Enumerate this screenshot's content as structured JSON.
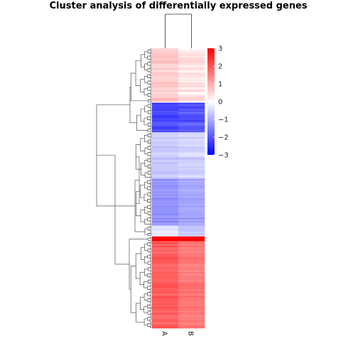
{
  "chart_data": {
    "type": "heatmap",
    "title": "Cluster analysis of differentially expressed genes",
    "columns": [
      "A",
      "B"
    ],
    "row_count": 180,
    "colorscale": {
      "min": -3,
      "max": 3,
      "low_color": "#0000ff",
      "mid_color": "#ffffff",
      "high_color": "#ff0000",
      "ticks": [
        3,
        2,
        1,
        0,
        -1,
        -2,
        -3
      ]
    },
    "column_dendrogram": "two leaves (A, B) joined at top",
    "row_blocks": [
      {
        "rows": 35,
        "A": 0.6,
        "B": 0.3,
        "noise": 0.45
      },
      {
        "rows": 19,
        "A": -2.2,
        "B": -2.0,
        "noise": 0.45
      },
      {
        "rows": 30,
        "A": -0.6,
        "B": -0.5,
        "noise": 0.3
      },
      {
        "rows": 30,
        "A": -1.3,
        "B": -1.1,
        "noise": 0.3
      },
      {
        "rows": 7,
        "A": -0.3,
        "B": -0.7,
        "noise": 0.3
      },
      {
        "rows": 3,
        "A": 3.0,
        "B": 3.0,
        "noise": 0.1
      },
      {
        "rows": 56,
        "A": 1.9,
        "B": 1.6,
        "noise": 0.35
      }
    ]
  }
}
